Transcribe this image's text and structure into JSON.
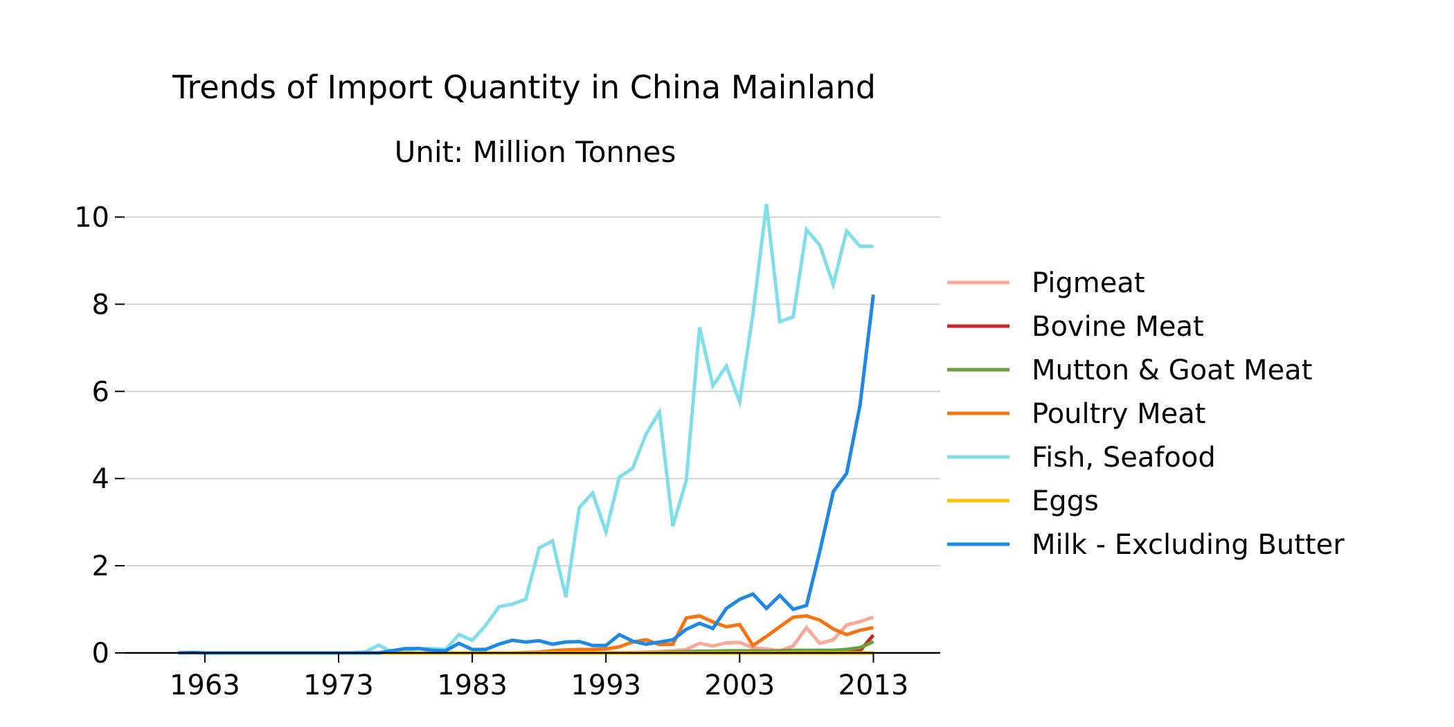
{
  "chart_data": {
    "type": "line",
    "title": "Trends of Import Quantity in China Mainland",
    "subtitle": "Unit: Million Tonnes",
    "xlabel": "",
    "ylabel": "",
    "xlim": [
      1957,
      2018
    ],
    "ylim": [
      0,
      10.5
    ],
    "x_ticks": [
      1963,
      1973,
      1983,
      1993,
      2003,
      2013
    ],
    "y_ticks": [
      0,
      2,
      4,
      6,
      8,
      10
    ],
    "grid": "horizontal",
    "legend_position": "right",
    "x": [
      1961,
      1962,
      1963,
      1964,
      1965,
      1966,
      1967,
      1968,
      1969,
      1970,
      1971,
      1972,
      1973,
      1974,
      1975,
      1976,
      1977,
      1978,
      1979,
      1980,
      1981,
      1982,
      1983,
      1984,
      1985,
      1986,
      1987,
      1988,
      1989,
      1990,
      1991,
      1992,
      1993,
      1994,
      1995,
      1996,
      1997,
      1998,
      1999,
      2000,
      2001,
      2002,
      2003,
      2004,
      2005,
      2006,
      2007,
      2008,
      2009,
      2010,
      2011,
      2012,
      2013
    ],
    "series": [
      {
        "name": "Pigmeat",
        "color": "#f9a99a",
        "values": [
          0,
          0,
          0,
          0,
          0,
          0,
          0,
          0,
          0,
          0,
          0,
          0,
          0,
          0,
          0,
          0,
          0,
          0,
          0,
          0,
          0,
          0,
          0,
          0,
          0,
          0,
          0,
          0,
          0,
          0,
          0,
          0,
          0,
          0.01,
          0.01,
          0.02,
          0.03,
          0.05,
          0.08,
          0.22,
          0.16,
          0.23,
          0.24,
          0.12,
          0.09,
          0.05,
          0.16,
          0.58,
          0.22,
          0.3,
          0.64,
          0.72,
          0.82
        ]
      },
      {
        "name": "Bovine Meat",
        "color": "#c62828",
        "values": [
          0,
          0,
          0,
          0,
          0,
          0,
          0,
          0,
          0,
          0,
          0,
          0,
          0,
          0,
          0,
          0,
          0,
          0,
          0,
          0,
          0,
          0,
          0,
          0,
          0,
          0,
          0,
          0,
          0,
          0,
          0,
          0,
          0,
          0,
          0,
          0,
          0,
          0,
          0,
          0,
          0.01,
          0.01,
          0.01,
          0.01,
          0.01,
          0.01,
          0.01,
          0.01,
          0.02,
          0.02,
          0.03,
          0.05,
          0.41
        ]
      },
      {
        "name": "Mutton & Goat Meat",
        "color": "#689f38",
        "values": [
          0,
          0,
          0,
          0,
          0,
          0,
          0,
          0,
          0,
          0,
          0,
          0,
          0,
          0,
          0,
          0,
          0,
          0,
          0,
          0,
          0,
          0,
          0,
          0,
          0,
          0,
          0,
          0,
          0,
          0,
          0,
          0,
          0,
          0,
          0,
          0,
          0.01,
          0.02,
          0.03,
          0.04,
          0.04,
          0.05,
          0.05,
          0.05,
          0.04,
          0.05,
          0.06,
          0.06,
          0.06,
          0.06,
          0.08,
          0.12,
          0.26
        ]
      },
      {
        "name": "Poultry Meat",
        "color": "#f57412",
        "values": [
          0,
          0,
          0,
          0,
          0,
          0,
          0,
          0,
          0,
          0,
          0,
          0,
          0,
          0,
          0,
          0,
          0,
          0,
          0,
          0,
          0,
          0,
          0,
          0,
          0,
          0,
          0.01,
          0.02,
          0.05,
          0.07,
          0.08,
          0.08,
          0.09,
          0.14,
          0.25,
          0.3,
          0.19,
          0.2,
          0.8,
          0.85,
          0.71,
          0.6,
          0.65,
          0.17,
          0.38,
          0.6,
          0.82,
          0.85,
          0.75,
          0.55,
          0.42,
          0.52,
          0.58
        ]
      },
      {
        "name": "Fish, Seafood",
        "color": "#80deea",
        "values": [
          0,
          0,
          0,
          0,
          0,
          0,
          0,
          0,
          0,
          0,
          0,
          0,
          0,
          0,
          0.02,
          0.18,
          0.02,
          0.05,
          0.1,
          0.1,
          0.08,
          0.42,
          0.29,
          0.63,
          1.06,
          1.12,
          1.23,
          2.41,
          2.57,
          1.28,
          3.33,
          3.67,
          2.78,
          4.03,
          4.24,
          5.02,
          5.53,
          2.91,
          3.95,
          7.47,
          6.13,
          6.58,
          5.76,
          7.79,
          10.3,
          7.6,
          7.71,
          9.71,
          9.35,
          8.45,
          9.68,
          9.33,
          9.33
        ]
      },
      {
        "name": "Eggs",
        "color": "#ffc107",
        "values": [
          0,
          0,
          0,
          0,
          0,
          0,
          0,
          0,
          0,
          0,
          0,
          0,
          0,
          0,
          0,
          0,
          0,
          0,
          0,
          0,
          0,
          0,
          0,
          0,
          0,
          0,
          0,
          0,
          0,
          0,
          0,
          0,
          0,
          0,
          0,
          0,
          0,
          0,
          0,
          0,
          0,
          0,
          0,
          0,
          0,
          0,
          0,
          0,
          0,
          0,
          0,
          0,
          0
        ]
      },
      {
        "name": "Milk - Excluding Butter",
        "color": "#1e88e5",
        "values": [
          0,
          0.01,
          0,
          0,
          0,
          0,
          0,
          0,
          0,
          0,
          0,
          0,
          0,
          0,
          0,
          0,
          0.05,
          0.1,
          0.1,
          0.06,
          0.05,
          0.22,
          0.08,
          0.08,
          0.2,
          0.29,
          0.25,
          0.28,
          0.2,
          0.25,
          0.26,
          0.17,
          0.17,
          0.42,
          0.27,
          0.2,
          0.25,
          0.3,
          0.54,
          0.68,
          0.56,
          1.02,
          1.23,
          1.35,
          1.02,
          1.32,
          1.0,
          1.09,
          2.34,
          3.7,
          4.12,
          5.68,
          8.22
        ]
      }
    ]
  }
}
